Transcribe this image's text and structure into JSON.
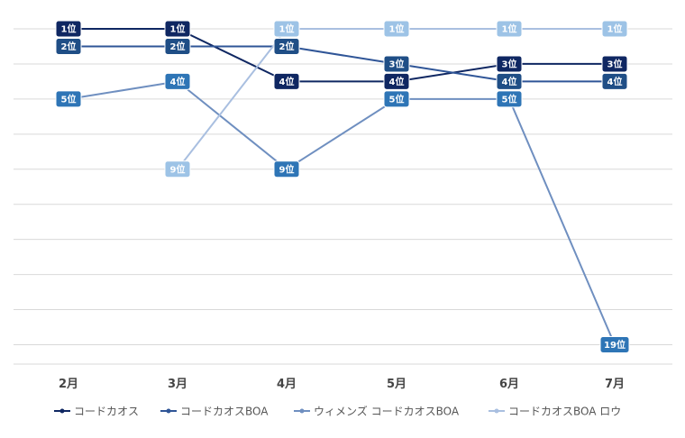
{
  "chart_data": {
    "type": "line",
    "title": "",
    "xlabel": "",
    "ylabel": "",
    "categories": [
      "2月",
      "3月",
      "4月",
      "5月",
      "6月",
      "7月"
    ],
    "ylim": [
      1,
      19
    ],
    "y_inverted": true,
    "label_suffix": "位",
    "legend_position": "bottom",
    "gridlines": true,
    "series": [
      {
        "name": "コードカオス",
        "color": "#0f2762",
        "values": [
          1,
          1,
          4,
          4,
          3,
          3
        ]
      },
      {
        "name": "コードカオスBOA",
        "color": "#1f4e86",
        "values": [
          2,
          2,
          2,
          3,
          4,
          4
        ]
      },
      {
        "name": "ウィメンズ コードカオスBOA",
        "color": "#2e75b6",
        "values": [
          5,
          4,
          9,
          5,
          5,
          19
        ]
      },
      {
        "name": "コードカオスBOA ロウ",
        "color": "#9dc3e6",
        "values": [
          null,
          9,
          1,
          1,
          1,
          1
        ]
      }
    ],
    "series_line_colors": [
      "#0f2762",
      "#2f5597",
      "#6f8fc0",
      "#a9bfe0"
    ]
  }
}
